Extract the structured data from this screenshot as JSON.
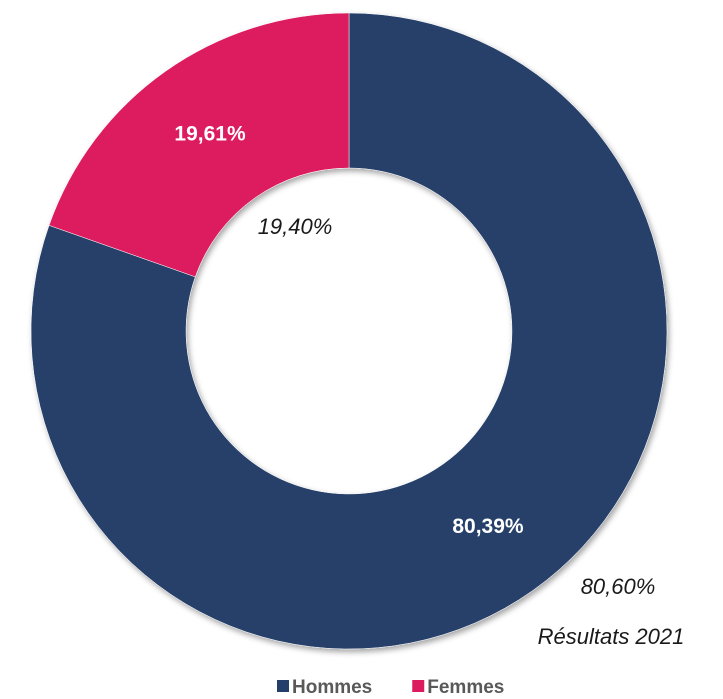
{
  "chart_data": {
    "type": "pie",
    "donut": true,
    "categories": [
      "Hommes",
      "Femmes"
    ],
    "values": [
      80.39,
      19.61
    ],
    "value_labels": [
      "80,39%",
      "19,61%"
    ],
    "colors": [
      "#253f6b",
      "#dc1a5f"
    ],
    "annotations": [
      "19,40%",
      "80,60%",
      "Résultats 2021"
    ],
    "legend": "bottom"
  }
}
